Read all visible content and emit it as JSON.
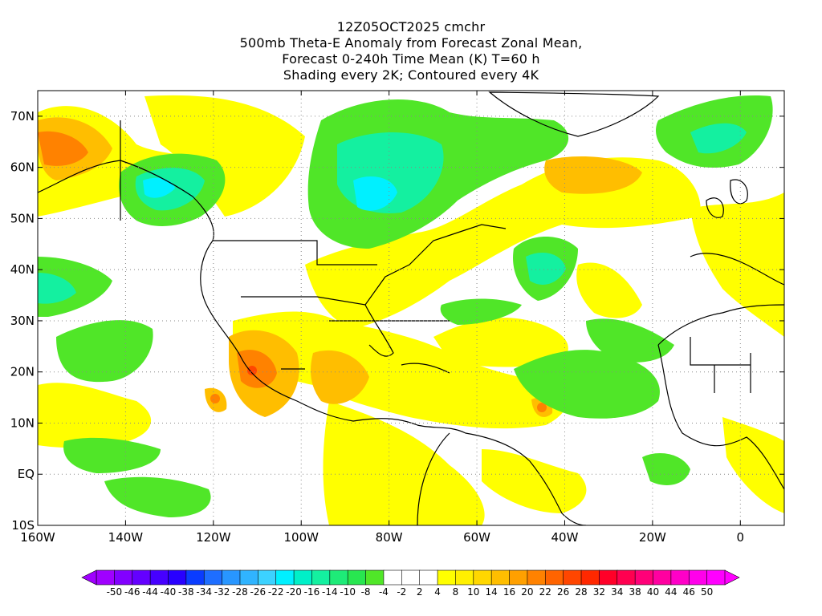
{
  "header": {
    "line1": "12Z05OCT2025 cmchr",
    "line2": "500mb Theta-E Anomaly from Forecast Zonal Mean,",
    "line3": "Forecast 0-240h Time Mean (K) T=60 h",
    "line4": "Shading every 2K; Contoured every 4K"
  },
  "map": {
    "lon_labels": [
      "160W",
      "140W",
      "120W",
      "100W",
      "80W",
      "60W",
      "40W",
      "20W",
      "0"
    ],
    "lat_labels": [
      "70N",
      "60N",
      "50N",
      "40N",
      "30N",
      "20N",
      "10N",
      "EQ",
      "10S"
    ]
  },
  "colorbar": {
    "labels": [
      "-50",
      "-46",
      "-44",
      "-40",
      "-38",
      "-34",
      "-32",
      "-28",
      "-26",
      "-22",
      "-20",
      "-16",
      "-14",
      "-10",
      "-8",
      "-4",
      "-2",
      "2",
      "4",
      "8",
      "10",
      "14",
      "16",
      "20",
      "22",
      "26",
      "28",
      "32",
      "34",
      "38",
      "40",
      "44",
      "46",
      "50"
    ],
    "colors": [
      "#a000ff",
      "#8200ff",
      "#6400ff",
      "#4600ff",
      "#2800ff",
      "#0a3cff",
      "#1e6eff",
      "#2896ff",
      "#30b4ff",
      "#3cd2ff",
      "#00f0ff",
      "#00f0c8",
      "#14f0a0",
      "#1eeb78",
      "#28e650",
      "#50e628",
      "#ffffff",
      "#ffffff",
      "#ffffff",
      "#ffff00",
      "#fff000",
      "#ffd700",
      "#ffbe00",
      "#ffa000",
      "#ff8200",
      "#ff6400",
      "#ff4600",
      "#ff2800",
      "#ff0028",
      "#ff0050",
      "#ff0078",
      "#ff00a0",
      "#ff00c8",
      "#ff00eb",
      "#ff00ff"
    ]
  }
}
